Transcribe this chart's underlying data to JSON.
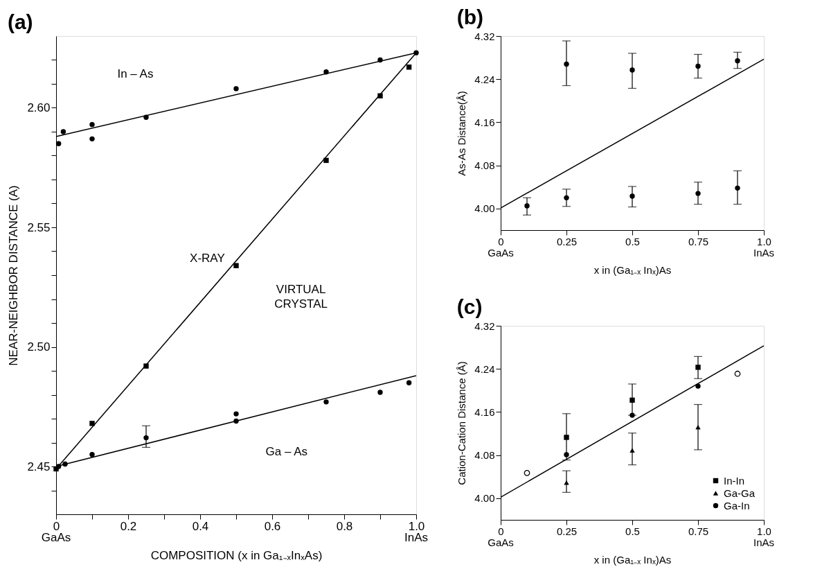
{
  "chart_data": [
    {
      "type": "scatter",
      "title": "(a)",
      "xlabel": "COMPOSITION (x in Ga₁₋ₓInₓAs)",
      "ylabel": "NEAR-NEIGHBOR DISTANCE (A)",
      "xlim": [
        0,
        1.0
      ],
      "ylim": [
        2.43,
        2.63
      ],
      "xticks": [
        0,
        {
          "value": 0.1,
          "label": null
        },
        0.2,
        {
          "value": 0.3,
          "label": null
        },
        0.4,
        {
          "value": 0.5,
          "label": null
        },
        0.6,
        {
          "value": 0.7,
          "label": null
        },
        0.8,
        {
          "value": 0.9,
          "label": null
        },
        {
          "value": 1.0,
          "label": "1.0"
        }
      ],
      "yticks": [
        {
          "value": 2.44,
          "label": null
        },
        2.45,
        {
          "value": 2.46,
          "label": null
        },
        {
          "value": 2.47,
          "label": null
        },
        {
          "value": 2.48,
          "label": null
        },
        {
          "value": 2.49,
          "label": null
        },
        {
          "value": 2.5,
          "label": "2.50"
        },
        {
          "value": 2.51,
          "label": null
        },
        {
          "value": 2.52,
          "label": null
        },
        {
          "value": 2.53,
          "label": null
        },
        {
          "value": 2.54,
          "label": null
        },
        2.55,
        {
          "value": 2.56,
          "label": null
        },
        {
          "value": 2.57,
          "label": null
        },
        {
          "value": 2.58,
          "label": null
        },
        {
          "value": 2.59,
          "label": null
        },
        {
          "value": 2.6,
          "label": "2.60"
        },
        {
          "value": 2.61,
          "label": null
        },
        {
          "value": 2.62,
          "label": null
        }
      ],
      "grid": false,
      "series": [
        {
          "type": "line",
          "color": "#000000",
          "x": [
            0,
            1.0
          ],
          "values": [
            2.588,
            2.623
          ]
        },
        {
          "type": "line",
          "color": "#000000",
          "x": [
            0,
            1.0
          ],
          "values": [
            2.449,
            2.623
          ]
        },
        {
          "type": "line",
          "color": "#000000",
          "x": [
            0,
            1.0
          ],
          "values": [
            2.45,
            2.488
          ]
        },
        {
          "marker": "circle",
          "color": "#000000",
          "x": [
            0.007,
            0.02,
            0.1,
            0.1,
            0.25,
            0.5,
            0.75,
            0.9,
            1.0
          ],
          "values": [
            2.585,
            2.59,
            2.593,
            2.587,
            2.596,
            2.608,
            2.615,
            2.62,
            2.623
          ]
        },
        {
          "marker": "square",
          "color": "#000000",
          "x": [
            0,
            0.02,
            0.1,
            0.25,
            0.5,
            0.75,
            0.9,
            0.98
          ],
          "values": [
            2.449,
            null,
            2.468,
            2.492,
            2.534,
            2.578,
            2.605,
            2.617
          ]
        },
        {
          "marker": "circle",
          "color": "#000000",
          "x": [
            0.007,
            0.025,
            0.1,
            0.25,
            0.5,
            0.5,
            0.75,
            0.9,
            0.98
          ],
          "values": [
            2.45,
            2.451,
            2.455,
            2.462,
            2.472,
            2.469,
            2.477,
            2.481,
            2.485
          ],
          "errors": [
            null,
            null,
            null,
            [
              2.458,
              2.467
            ],
            null,
            null,
            null,
            null,
            null
          ]
        }
      ],
      "annotations": [
        "In – As",
        "X-RAY",
        "VIRTUAL\nCRYSTAL",
        "Ga – As",
        "GaAs",
        "InAs"
      ]
    },
    {
      "type": "scatter",
      "title": "(b)",
      "xlabel": "x in (Ga₁₋ₓ Inₓ)As",
      "ylabel": "As-As Distance(Å)",
      "xlim": [
        0,
        1.0
      ],
      "ylim": [
        3.96,
        4.32
      ],
      "xticks": [
        0,
        0.25,
        0.5,
        0.75,
        {
          "value": 1.0,
          "label": "1.0"
        }
      ],
      "yticks": [
        {
          "value": 4.0,
          "label": "4.00"
        },
        4.08,
        4.16,
        4.24,
        4.32
      ],
      "grid": false,
      "series": [
        {
          "type": "line",
          "color": "#000000",
          "x": [
            0,
            1.0
          ],
          "values": [
            4.001,
            4.277
          ]
        },
        {
          "marker": "circle",
          "color": "#000000",
          "x": [
            0.25,
            0.5,
            0.75,
            0.9
          ],
          "values": [
            4.268,
            4.257,
            4.264,
            4.274
          ],
          "errors": [
            [
              4.228,
              4.311
            ],
            [
              4.223,
              4.288
            ],
            [
              4.242,
              4.286
            ],
            [
              4.26,
              4.29
            ]
          ]
        },
        {
          "marker": "circle",
          "color": "#000000",
          "x": [
            0.1,
            0.25,
            0.5,
            0.75,
            0.9
          ],
          "values": [
            4.005,
            4.02,
            4.023,
            4.028,
            4.038
          ],
          "errors": [
            [
              3.988,
              4.02
            ],
            [
              4.004,
              4.036
            ],
            [
              4.003,
              4.041
            ],
            [
              4.008,
              4.049
            ],
            [
              4.008,
              4.07
            ]
          ]
        }
      ],
      "annotations": [
        "GaAs",
        "InAs"
      ]
    },
    {
      "type": "scatter",
      "title": "(c)",
      "xlabel": "x in (Ga₁₋ₓ Inₓ)As",
      "ylabel": "Cation-Cation Distance (Å)",
      "xlim": [
        0,
        1.0
      ],
      "ylim": [
        3.96,
        4.32
      ],
      "xticks": [
        0,
        0.25,
        0.5,
        0.75,
        {
          "value": 1.0,
          "label": "1.0"
        }
      ],
      "yticks": [
        {
          "value": 4.0,
          "label": "4.00"
        },
        4.08,
        4.16,
        4.24,
        4.32
      ],
      "grid": false,
      "legend": "bottom right",
      "series": [
        {
          "type": "line",
          "color": "#000000",
          "x": [
            0,
            1.0
          ],
          "values": [
            4.002,
            4.283
          ]
        },
        {
          "name": "In-In",
          "marker": "square",
          "color": "#000000",
          "x": [
            0.25,
            0.5,
            0.75
          ],
          "values": [
            4.113,
            4.182,
            4.243
          ],
          "errors": [
            [
              4.071,
              4.157
            ],
            [
              4.154,
              4.212
            ],
            [
              4.222,
              4.263
            ]
          ]
        },
        {
          "name": "Ga-Ga",
          "marker": "triangle",
          "color": "#000000",
          "x": [
            0.25,
            0.5,
            0.75
          ],
          "values": [
            4.029,
            4.089,
            4.132
          ],
          "errors": [
            [
              4.011,
              4.051
            ],
            [
              4.062,
              4.121
            ],
            [
              4.09,
              4.174
            ]
          ]
        },
        {
          "name": "Ga-In",
          "marker": "circle",
          "color": "#000000",
          "x": [
            0.25,
            0.5,
            0.75
          ],
          "values": [
            4.081,
            4.154,
            4.208
          ]
        },
        {
          "marker": "circle",
          "color": "#000000",
          "x": [
            0.1,
            0.9
          ],
          "values": [
            4.047,
            4.231
          ]
        }
      ],
      "annotations": [
        "GaAs",
        "InAs"
      ]
    }
  ]
}
